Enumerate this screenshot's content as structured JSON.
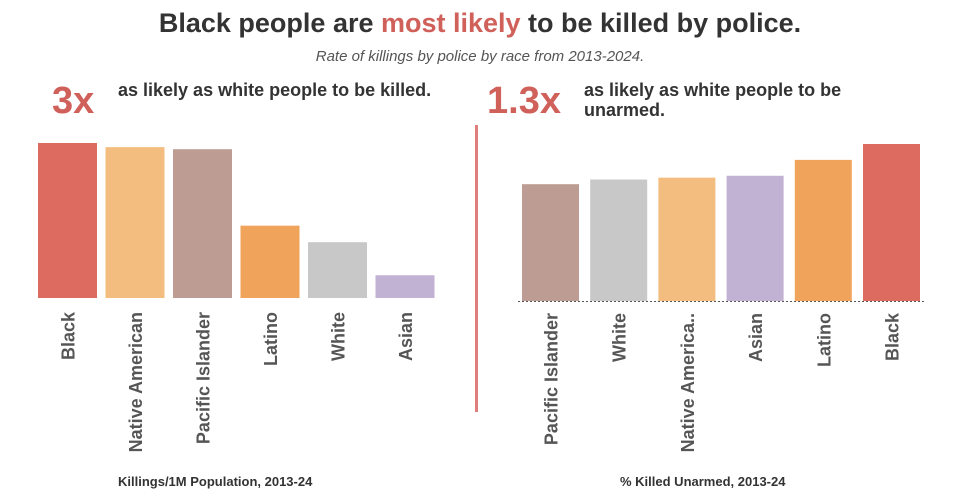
{
  "header": {
    "title_before": "Black people are ",
    "title_highlight": "most likely",
    "title_after": " to be killed by police.",
    "subtitle": "Rate of killings by police by race from 2013-2024."
  },
  "left_panel": {
    "big_stat": "3x",
    "description": "as likely as white people to be killed.",
    "footer": "Killings/1M Population, 2013-24"
  },
  "right_panel": {
    "big_stat": "1.3x",
    "description": "as likely as white people to be unarmed.",
    "footer": "% Killed Unarmed, 2013-24"
  },
  "colors": {
    "Black": "#de6b60",
    "Native American": "#f4bd80",
    "Native America..": "#f4bd80",
    "Pacific Islander": "#bd9d93",
    "Latino": "#f0a35a",
    "White": "#c8c8c8",
    "Asian": "#c1b1d2",
    "accent": "#d0605a"
  },
  "chart_data": [
    {
      "type": "bar",
      "categories": [
        "Black",
        "Native American",
        "Pacific Islander",
        "Latino",
        "White",
        "Asian"
      ],
      "values": [
        7.5,
        7.3,
        7.2,
        3.5,
        2.7,
        1.1
      ],
      "title": "",
      "xlabel": "Killings/1M Population, 2013-24",
      "ylabel": "",
      "ylim": [
        0,
        7.5
      ],
      "grid": false
    },
    {
      "type": "bar",
      "categories": [
        "Pacific Islander",
        "White",
        "Native America..",
        "Asian",
        "Latino",
        "Black"
      ],
      "values": [
        12.5,
        13.0,
        13.2,
        13.4,
        15.1,
        16.8
      ],
      "title": "",
      "xlabel": "% Killed Unarmed, 2013-24",
      "ylabel": "",
      "ylim": [
        0,
        16.8
      ],
      "grid": false
    }
  ]
}
